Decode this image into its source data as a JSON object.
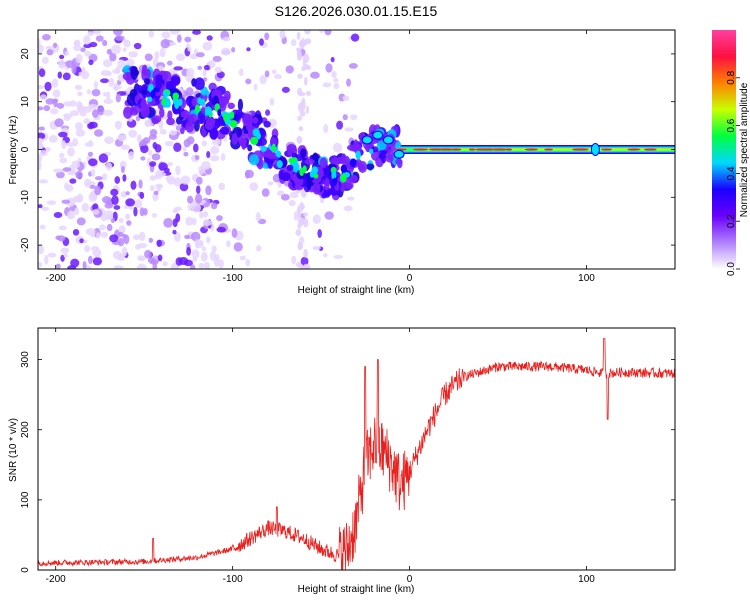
{
  "figure": {
    "title": "S126.2026.030.01.15.E15"
  },
  "chart_data": [
    {
      "type": "heatmap",
      "name": "spectrogram",
      "xlabel": "Height of straight line (km)",
      "ylabel": "Frequency (Hz)",
      "xlim": [
        -210,
        150
      ],
      "ylim": [
        -25,
        25
      ],
      "xticks": [
        -200,
        -100,
        0,
        100
      ],
      "yticks": [
        -20,
        -10,
        0,
        10,
        20
      ],
      "colorbar": {
        "label": "Normalized spectral amplitude",
        "range": [
          0.0,
          1.0
        ],
        "ticks": [
          0.0,
          0.2,
          0.4,
          0.6,
          0.8
        ],
        "tick_labels": [
          "0.0",
          "0.2",
          "0.4",
          "0.6",
          "0.8"
        ],
        "colormap": [
          "#ffffff",
          "#b080ff",
          "#6a00ff",
          "#1a00ff",
          "#00d8ff",
          "#00ff40",
          "#c8ff00",
          "#ff8000",
          "#ff1040",
          "#ff40a0"
        ]
      },
      "ridge": {
        "description_points": [
          [
            -150,
            12
          ],
          [
            -130,
            10
          ],
          [
            -110,
            8
          ],
          [
            -100,
            6
          ],
          [
            -90,
            3
          ],
          [
            -80,
            1
          ],
          [
            -70,
            -3
          ],
          [
            -55,
            -5
          ],
          [
            -40,
            -6
          ],
          [
            -30,
            -2
          ],
          [
            -20,
            1
          ],
          [
            -10,
            1
          ],
          [
            0,
            0
          ],
          [
            150,
            0
          ]
        ],
        "band_start_km": -5,
        "band_end_km": 150,
        "band_freq_hz": 0,
        "bright_spots_km": [
          105
        ]
      }
    },
    {
      "type": "line",
      "name": "snr",
      "xlabel": "Height of straight line (km)",
      "ylabel": "SNR (10 * v/v)",
      "xlim": [
        -210,
        150
      ],
      "ylim": [
        0,
        345
      ],
      "xticks": [
        -200,
        -100,
        0,
        100
      ],
      "yticks": [
        0,
        100,
        200,
        300
      ],
      "color": "#e8201e",
      "envelope": {
        "x": [
          -210,
          -150,
          -120,
          -100,
          -90,
          -80,
          -70,
          -60,
          -50,
          -40,
          -35,
          -30,
          -25,
          -20,
          -15,
          -10,
          -5,
          0,
          10,
          20,
          30,
          50,
          80,
          100,
          110,
          120,
          150
        ],
        "y": [
          10,
          12,
          18,
          30,
          45,
          60,
          55,
          45,
          30,
          20,
          30,
          70,
          150,
          180,
          170,
          150,
          120,
          140,
          200,
          250,
          275,
          290,
          290,
          285,
          280,
          282,
          280
        ]
      },
      "spikes": [
        [
          -145,
          45
        ],
        [
          -75,
          90
        ],
        [
          -18,
          300
        ],
        [
          -25,
          290
        ],
        [
          110,
          330
        ],
        [
          112,
          215
        ]
      ]
    }
  ]
}
